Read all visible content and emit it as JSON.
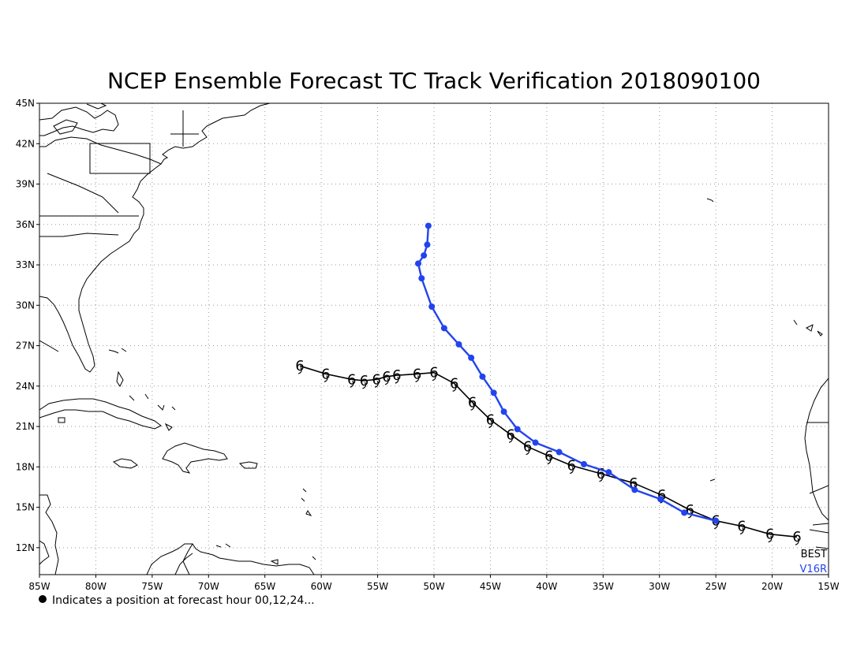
{
  "title": "NCEP Ensemble Forecast TC Track Verification 2018090100",
  "footnote": "Indicates a position at forecast hour 00,12,24...",
  "colors": {
    "best": "#000000",
    "forecast": "#2244ee",
    "grid": "#9a9a9a"
  },
  "chart_data": {
    "type": "map",
    "projection": "cylindrical-equidistant",
    "lon_range": [
      -85,
      -15
    ],
    "lat_range": [
      10,
      45
    ],
    "xticks": [
      {
        "value": -85,
        "label": "85W"
      },
      {
        "value": -80,
        "label": "80W"
      },
      {
        "value": -75,
        "label": "75W"
      },
      {
        "value": -70,
        "label": "70W"
      },
      {
        "value": -65,
        "label": "65W"
      },
      {
        "value": -60,
        "label": "60W"
      },
      {
        "value": -55,
        "label": "55W"
      },
      {
        "value": -50,
        "label": "50W"
      },
      {
        "value": -45,
        "label": "45W"
      },
      {
        "value": -40,
        "label": "40W"
      },
      {
        "value": -35,
        "label": "35W"
      },
      {
        "value": -30,
        "label": "30W"
      },
      {
        "value": -25,
        "label": "25W"
      },
      {
        "value": -20,
        "label": "20W"
      },
      {
        "value": -15,
        "label": "15W"
      }
    ],
    "yticks": [
      {
        "value": 12,
        "label": "12N"
      },
      {
        "value": 15,
        "label": "15N"
      },
      {
        "value": 18,
        "label": "18N"
      },
      {
        "value": 21,
        "label": "21N"
      },
      {
        "value": 24,
        "label": "24N"
      },
      {
        "value": 27,
        "label": "27N"
      },
      {
        "value": 30,
        "label": "30N"
      },
      {
        "value": 33,
        "label": "33N"
      },
      {
        "value": 36,
        "label": "36N"
      },
      {
        "value": 39,
        "label": "39N"
      },
      {
        "value": 42,
        "label": "42N"
      },
      {
        "value": 45,
        "label": "45N"
      }
    ],
    "grid": true,
    "series": [
      {
        "name": "BEST",
        "color": "#000000",
        "marker": "tropical-cyclone-symbol",
        "points": [
          {
            "lon": -17.8,
            "lat": 12.8
          },
          {
            "lon": -20.2,
            "lat": 13.0
          },
          {
            "lon": -22.7,
            "lat": 13.6
          },
          {
            "lon": -25.0,
            "lat": 14.0
          },
          {
            "lon": -27.3,
            "lat": 14.8
          },
          {
            "lon": -29.8,
            "lat": 15.9
          },
          {
            "lon": -32.3,
            "lat": 16.8
          },
          {
            "lon": -35.2,
            "lat": 17.5
          },
          {
            "lon": -37.8,
            "lat": 18.1
          },
          {
            "lon": -39.8,
            "lat": 18.8
          },
          {
            "lon": -41.7,
            "lat": 19.5
          },
          {
            "lon": -43.2,
            "lat": 20.4
          },
          {
            "lon": -45.0,
            "lat": 21.5
          },
          {
            "lon": -46.6,
            "lat": 22.8
          },
          {
            "lon": -48.2,
            "lat": 24.2
          },
          {
            "lon": -50.0,
            "lat": 25.0
          },
          {
            "lon": -51.5,
            "lat": 24.9
          },
          {
            "lon": -53.3,
            "lat": 24.8
          },
          {
            "lon": -54.2,
            "lat": 24.7
          },
          {
            "lon": -55.1,
            "lat": 24.5
          },
          {
            "lon": -56.2,
            "lat": 24.4
          },
          {
            "lon": -57.3,
            "lat": 24.5
          },
          {
            "lon": -59.6,
            "lat": 24.9
          },
          {
            "lon": -61.9,
            "lat": 25.5
          }
        ]
      },
      {
        "name": "V16R",
        "color": "#2244ee",
        "marker": "dot",
        "points": [
          {
            "lon": -25.0,
            "lat": 14.0
          },
          {
            "lon": -27.8,
            "lat": 14.6
          },
          {
            "lon": -29.9,
            "lat": 15.6
          },
          {
            "lon": -32.2,
            "lat": 16.3
          },
          {
            "lon": -34.5,
            "lat": 17.6
          },
          {
            "lon": -36.7,
            "lat": 18.2
          },
          {
            "lon": -38.9,
            "lat": 19.1
          },
          {
            "lon": -41.0,
            "lat": 19.8
          },
          {
            "lon": -42.6,
            "lat": 20.8
          },
          {
            "lon": -43.8,
            "lat": 22.1
          },
          {
            "lon": -44.7,
            "lat": 23.5
          },
          {
            "lon": -45.7,
            "lat": 24.7
          },
          {
            "lon": -46.7,
            "lat": 26.1
          },
          {
            "lon": -47.8,
            "lat": 27.1
          },
          {
            "lon": -49.1,
            "lat": 28.3
          },
          {
            "lon": -50.2,
            "lat": 29.9
          },
          {
            "lon": -51.1,
            "lat": 32.0
          },
          {
            "lon": -51.4,
            "lat": 33.1
          },
          {
            "lon": -50.9,
            "lat": 33.7
          },
          {
            "lon": -50.6,
            "lat": 34.5
          },
          {
            "lon": -50.5,
            "lat": 35.9
          }
        ]
      }
    ],
    "legend": [
      {
        "label": "BEST",
        "color": "#000000"
      },
      {
        "label": "V16R",
        "color": "#2244ee"
      }
    ],
    "legend_position": "bottom-right"
  }
}
